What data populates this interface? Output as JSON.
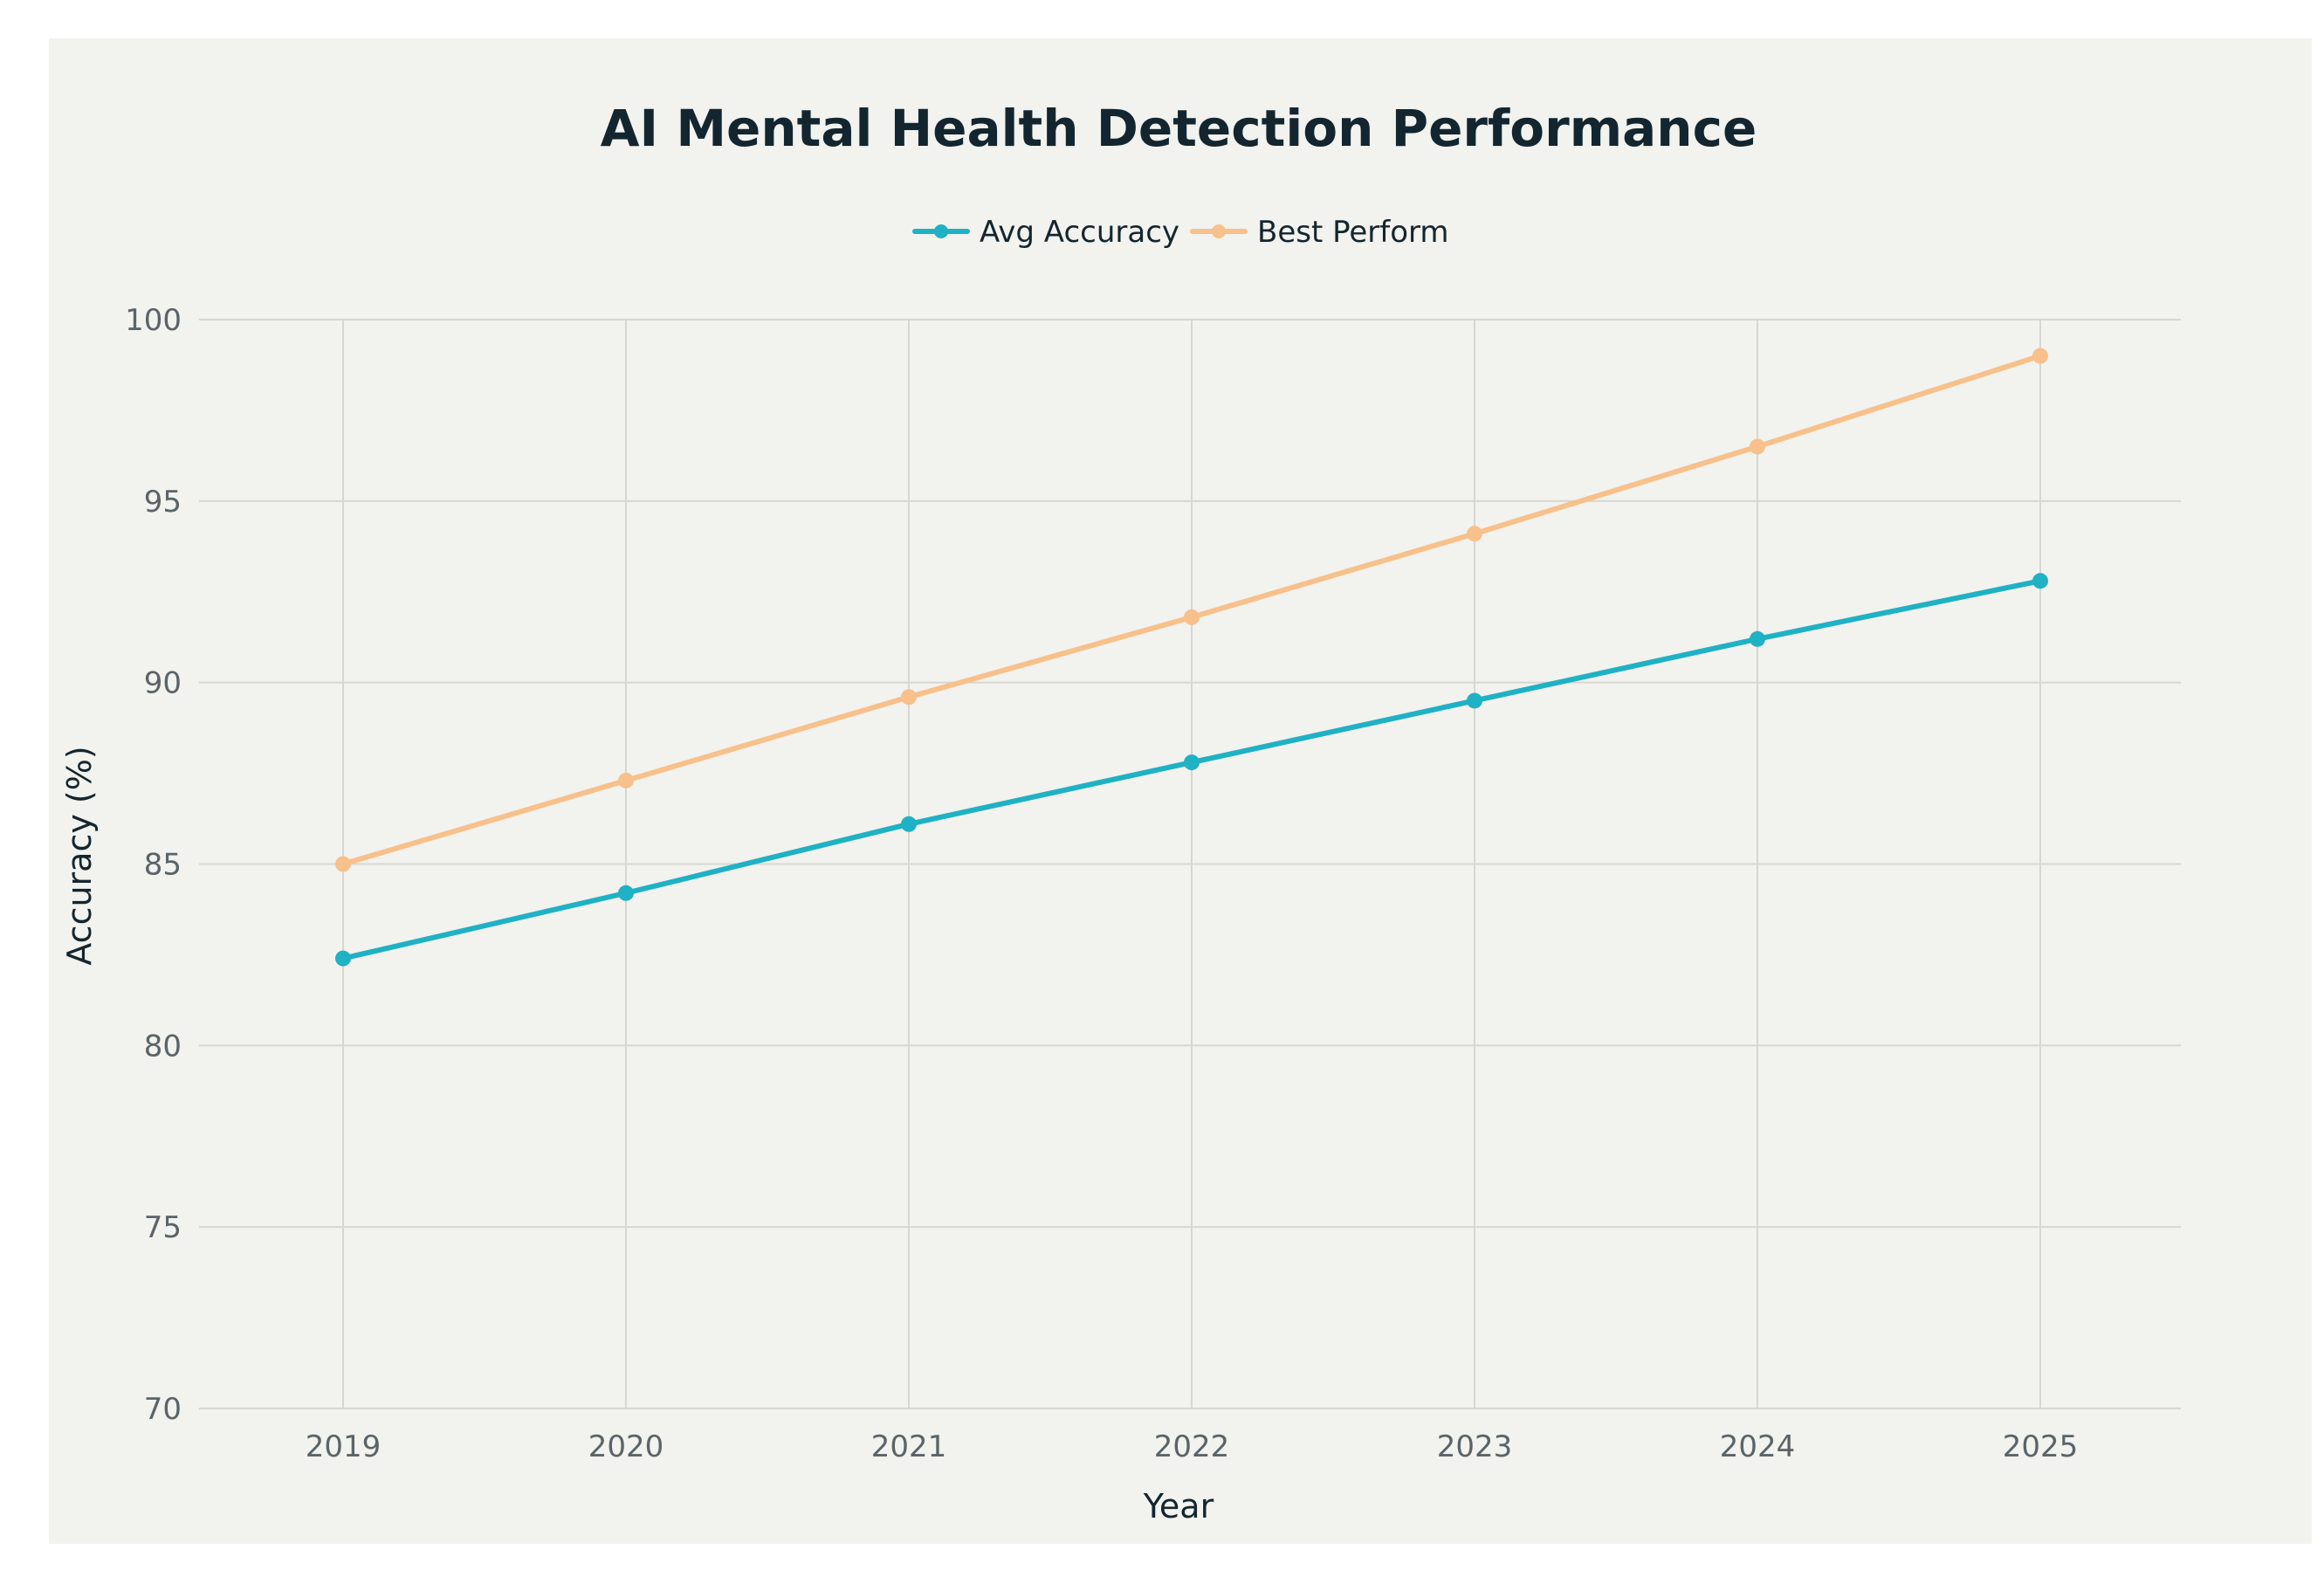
{
  "chart_data": {
    "type": "line",
    "title": "AI Mental Health Detection Performance",
    "xlabel": "Year",
    "ylabel": "Accuracy (%)",
    "categories": [
      "2019",
      "2020",
      "2021",
      "2022",
      "2023",
      "2024",
      "2025"
    ],
    "ylim": [
      70,
      100
    ],
    "yticks": [
      70,
      75,
      80,
      85,
      90,
      95,
      100
    ],
    "grid": true,
    "legend_position": "top-center",
    "series": [
      {
        "name": "Avg Accuracy",
        "color": "#1fb1c4",
        "values": [
          82.4,
          84.2,
          86.1,
          87.8,
          89.5,
          91.2,
          92.8
        ]
      },
      {
        "name": "Best Perform",
        "color": "#f8c08a",
        "values": [
          85.0,
          87.3,
          89.6,
          91.8,
          94.1,
          96.5,
          99.0
        ]
      }
    ]
  }
}
